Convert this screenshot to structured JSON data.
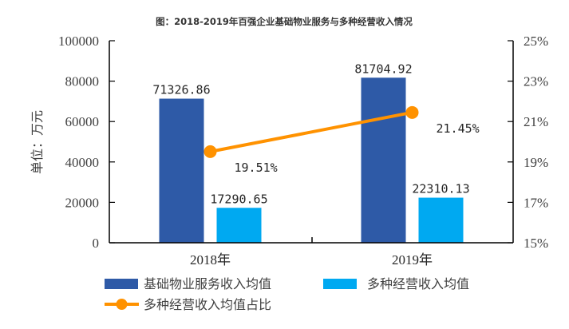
{
  "chart_data": {
    "type": "bar",
    "title": "图：2018-2019年百强企业基础物业服务与多种经营收入情况",
    "categories": [
      "2018年",
      "2019年"
    ],
    "ylabel": "单位：万元",
    "ylim": [
      0,
      100000
    ],
    "yticks": [
      "0",
      "20000",
      "40000",
      "60000",
      "80000",
      "100000"
    ],
    "y2lim": [
      15,
      25
    ],
    "y2ticks": [
      "15%",
      "17%",
      "19%",
      "21%",
      "23%",
      "25%"
    ],
    "grid": false,
    "legend_position": "bottom",
    "series": [
      {
        "name": "基础物业服务收入均值",
        "type": "bar",
        "axis": "left",
        "color": "#2E5AA7",
        "values": [
          71326.86,
          81704.92
        ],
        "labels": [
          "71326.86",
          "81704.92"
        ]
      },
      {
        "name": "多种经营收入均值",
        "type": "bar",
        "axis": "left",
        "color": "#00A9F1",
        "values": [
          17290.65,
          22310.13
        ],
        "labels": [
          "17290.65",
          "22310.13"
        ]
      },
      {
        "name": "多种经营收入均值占比",
        "type": "line",
        "axis": "right",
        "color": "#FF9200",
        "values": [
          19.51,
          21.45
        ],
        "labels": [
          "19.51%",
          "21.45%"
        ]
      }
    ]
  }
}
